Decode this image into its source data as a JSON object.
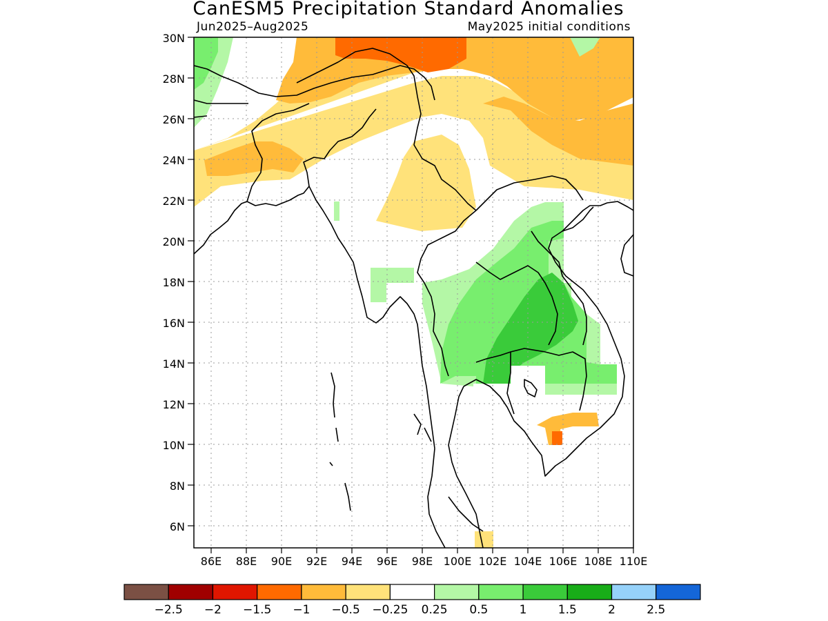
{
  "title": "CanESM5 Precipitation Standard Anomalies",
  "period": "Jun2025–Aug2025",
  "init": "May2025 initial conditions",
  "lat_labels": [
    "30N",
    "28N",
    "26N",
    "24N",
    "22N",
    "20N",
    "18N",
    "16N",
    "14N",
    "12N",
    "10N",
    "8N",
    "6N"
  ],
  "lon_labels": [
    "86E",
    "88E",
    "90E",
    "92E",
    "94E",
    "96E",
    "98E",
    "100E",
    "102E",
    "104E",
    "106E",
    "108E",
    "110E"
  ],
  "colorbar": {
    "colors": [
      "#7b5044",
      "#a00000",
      "#e01600",
      "#ff6a00",
      "#ffbb3a",
      "#ffe27a",
      "#ffffff",
      "#b4f7a6",
      "#78ee6e",
      "#3acb3a",
      "#18ad18",
      "#96d2fa",
      "#1466d8"
    ],
    "labels": [
      "−2.5",
      "−2",
      "−1.5",
      "−1",
      "−0.5",
      "−0.25",
      "0.25",
      "0.5",
      "1",
      "1.5",
      "2",
      "2.5"
    ]
  },
  "colors": {
    "orange": "#ffbb3a",
    "light_orange": "#ffe27a",
    "dark_orange": "#ff6a00",
    "light_green": "#b4f7a6",
    "green": "#78ee6e",
    "dark_green": "#3acb3a"
  }
}
